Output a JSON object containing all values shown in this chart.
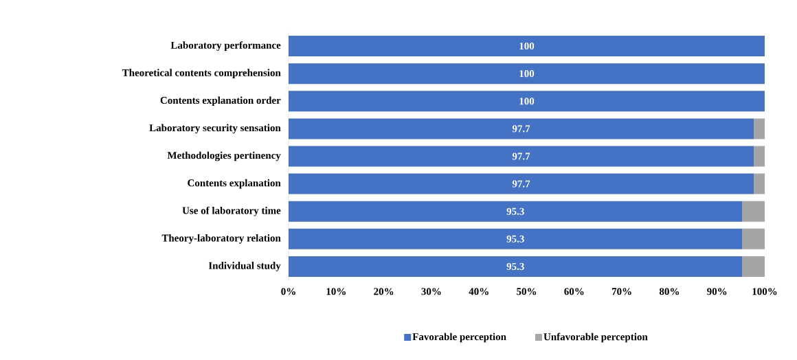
{
  "chart_data": {
    "type": "bar",
    "orientation": "horizontal",
    "stacked": true,
    "categories": [
      "Laboratory performance",
      "Theoretical contents comprehension",
      "Contents explanation order",
      "Laboratory security sensation",
      "Methodologies pertinency",
      "Contents explanation",
      "Use of laboratory time",
      "Theory-laboratory relation",
      "Individual study"
    ],
    "series": [
      {
        "name": "Favorable perception",
        "color": "#4472c4",
        "values": [
          100,
          100,
          100,
          97.7,
          97.7,
          97.7,
          95.3,
          95.3,
          95.3
        ],
        "value_labels": [
          "100",
          "100",
          "100",
          "97.7",
          "97.7",
          "97.7",
          "95.3",
          "95.3",
          "95.3"
        ]
      },
      {
        "name": "Unfavorable perception",
        "color": "#a5a5a5",
        "values": [
          0,
          0,
          0,
          2.3,
          2.3,
          2.3,
          4.7,
          4.7,
          4.7
        ]
      }
    ],
    "xlim": [
      0,
      100
    ],
    "xticks": [
      {
        "value": 0,
        "label": "0%"
      },
      {
        "value": 10,
        "label": "10%"
      },
      {
        "value": 20,
        "label": "20%"
      },
      {
        "value": 30,
        "label": "30%"
      },
      {
        "value": 40,
        "label": "40%"
      },
      {
        "value": 50,
        "label": "50%"
      },
      {
        "value": 60,
        "label": "60%"
      },
      {
        "value": 70,
        "label": "70%"
      },
      {
        "value": 80,
        "label": "80%"
      },
      {
        "value": 90,
        "label": "90%"
      },
      {
        "value": 100,
        "label": "100%"
      }
    ],
    "legend": "bottom"
  }
}
